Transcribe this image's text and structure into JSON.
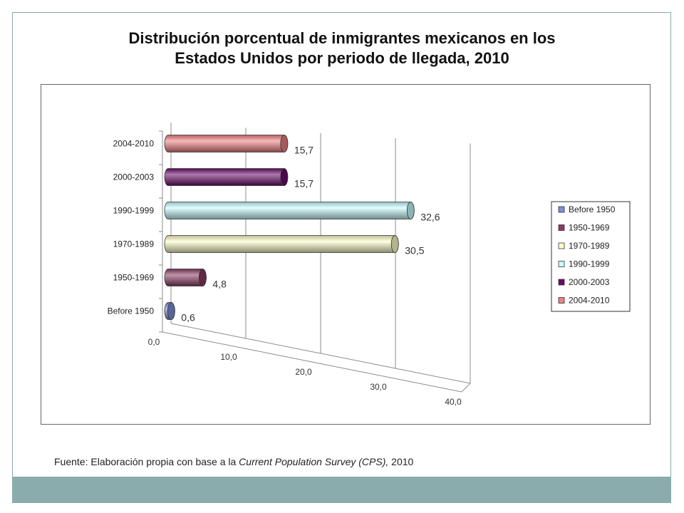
{
  "title_line1": "Distribución porcentual de inmigrantes mexicanos en los",
  "title_line2": "Estados Unidos por periodo de llegada, 2010",
  "source": {
    "prefix": "Fuente: Elaboración propia con base a la ",
    "italic": "Current Population Survey (CPS),",
    "suffix": " 2010"
  },
  "chart_data": {
    "type": "bar",
    "orientation": "horizontal",
    "style": "3d-cylinder",
    "categories": [
      "Before 1950",
      "1950-1969",
      "1970-1989",
      "1990-1999",
      "2000-2003",
      "2004-2010"
    ],
    "values": [
      0.6,
      4.8,
      30.5,
      32.6,
      15.7,
      15.7
    ],
    "value_labels": [
      "0,6",
      "4,8",
      "30,5",
      "32,6",
      "15,7",
      "15,7"
    ],
    "colors": [
      "#7f8fd9",
      "#8b3a62",
      "#ffffc8",
      "#c8ffff",
      "#6a0a6a",
      "#f08080"
    ],
    "xlim": [
      0,
      40
    ],
    "x_ticks": [
      0,
      10,
      20,
      30,
      40
    ],
    "x_tick_labels": [
      "0,0",
      "10,0",
      "20,0",
      "30,0",
      "40,0"
    ],
    "grid": true,
    "legend_position": "right"
  }
}
